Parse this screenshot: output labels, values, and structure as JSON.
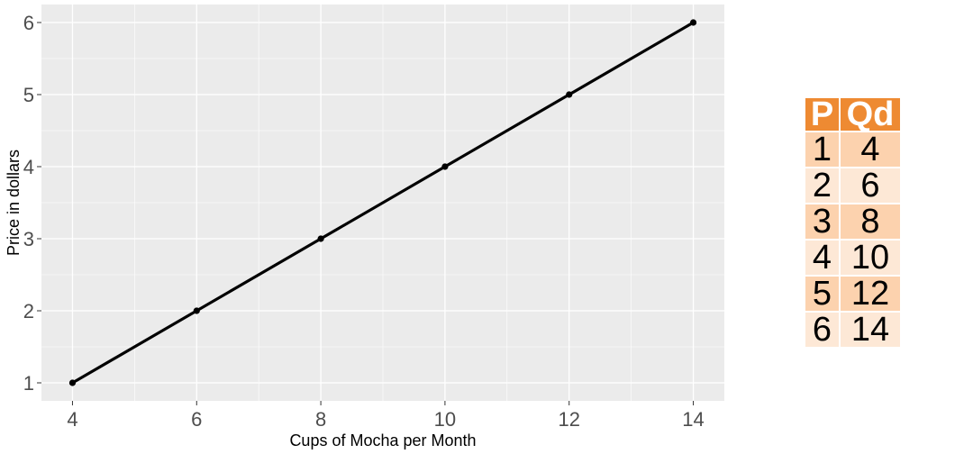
{
  "chart_data": {
    "type": "line",
    "x": [
      4,
      6,
      8,
      10,
      12,
      14
    ],
    "series": [
      {
        "values": [
          1,
          2,
          3,
          4,
          5,
          6
        ],
        "color": "#000000"
      }
    ],
    "xlabel": "Cups of Mocha per Month",
    "ylabel": "Price in dollars",
    "xlim": [
      3.5,
      14.5
    ],
    "ylim": [
      0.75,
      6.25
    ],
    "xticks": [
      4,
      6,
      8,
      10,
      12,
      14
    ],
    "yticks": [
      1,
      2,
      3,
      4,
      5,
      6
    ],
    "grid": true,
    "panel_color": "#ebebeb"
  },
  "table": {
    "headers": [
      "P",
      "Qd"
    ],
    "rows": [
      [
        "1",
        "4"
      ],
      [
        "2",
        "6"
      ],
      [
        "3",
        "8"
      ],
      [
        "4",
        "10"
      ],
      [
        "5",
        "12"
      ],
      [
        "6",
        "14"
      ]
    ],
    "header_color": "#ee8a32",
    "row_colors": [
      "#fcd2ae",
      "#fde8d6"
    ]
  }
}
